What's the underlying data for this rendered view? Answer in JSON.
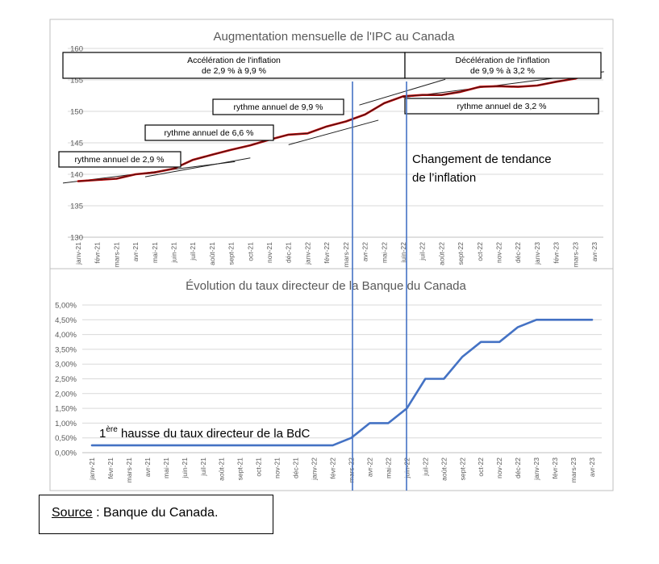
{
  "months": [
    "janv-21",
    "févr-21",
    "mars-21",
    "avr-21",
    "mai-21",
    "juin-21",
    "juil-21",
    "août-21",
    "sept-21",
    "oct-21",
    "nov-21",
    "déc-21",
    "janv-22",
    "févr-22",
    "mars-22",
    "avr-22",
    "mai-22",
    "juin-22",
    "juil-22",
    "août-22",
    "sept-22",
    "oct-22",
    "nov-22",
    "déc-22",
    "janv-23",
    "févr-23",
    "mars-23",
    "avr-23"
  ],
  "chart_data": [
    {
      "type": "line",
      "title": "Augmentation mensuelle de l'IPC au Canada",
      "xlabel": "",
      "ylabel": "",
      "ylim": [
        130,
        160
      ],
      "yticks": [
        "130",
        "135",
        "140",
        "145",
        "150",
        "155",
        "160"
      ],
      "series": [
        {
          "name": "",
          "color": "#c00000",
          "values": [
            138.9,
            139.1,
            139.3,
            140,
            140.3,
            140.9,
            142.3,
            143.1,
            143.9,
            144.6,
            145.5,
            146.3,
            146.5,
            147.6,
            148.4,
            149.5,
            151.3,
            152.4,
            152.6,
            152.6,
            153.1,
            153.9,
            154,
            153.9,
            154.1,
            154.7,
            155.2,
            156.4
          ]
        }
      ],
      "annotations": {
        "acceleration_line1": "Accélération de l'inflation",
        "acceleration_line2": "de 2,9 % à 9,9 %",
        "deceleration_line1": "Décélération de l'inflation",
        "deceleration_line2": "de 9,9 % à 3,2 %",
        "rythme_29": "rythme annuel de 2,9 %",
        "rythme_66": "rythme annuel de 6,6 %",
        "rythme_99": "rythme annuel de 9,9 %",
        "rythme_32": "rythme annuel de 3,2 %",
        "changement_line1": "Changement de tendance",
        "changement_line2": "de l’inflation"
      }
    },
    {
      "type": "line",
      "title": "Évolution du taux directeur de la Banque du Canada",
      "xlabel": "",
      "ylabel": "",
      "ylim": [
        0,
        5
      ],
      "yticks": [
        "0,00%",
        "0,50%",
        "1,00%",
        "1,50%",
        "2,00%",
        "2,50%",
        "3,00%",
        "3,50%",
        "4,00%",
        "4,50%",
        "5,00%"
      ],
      "series": [
        {
          "name": "",
          "color": "#4472c4",
          "values": [
            0.25,
            0.25,
            0.25,
            0.25,
            0.25,
            0.25,
            0.25,
            0.25,
            0.25,
            0.25,
            0.25,
            0.25,
            0.25,
            0.25,
            0.5,
            1.0,
            1.0,
            1.5,
            2.5,
            2.5,
            3.25,
            3.75,
            3.75,
            4.25,
            4.5,
            4.5,
            4.5,
            4.5
          ]
        }
      ],
      "annotations": {
        "hausse_sup": "ère",
        "hausse_prefix": "1",
        "hausse_text": " hausse du taux directeur de la BdC"
      }
    }
  ],
  "source": {
    "label": "Source",
    "text": " : Banque du Canada."
  },
  "colors": {
    "cpi_line": "#c00000",
    "trend_line": "#1f1f1f",
    "rate_line": "#4472c4",
    "marker_line": "#4472c4",
    "grid": "#d9d9d9",
    "frame": "#bfbfbf",
    "title_text": "#595959",
    "tick_text": "#595959"
  }
}
